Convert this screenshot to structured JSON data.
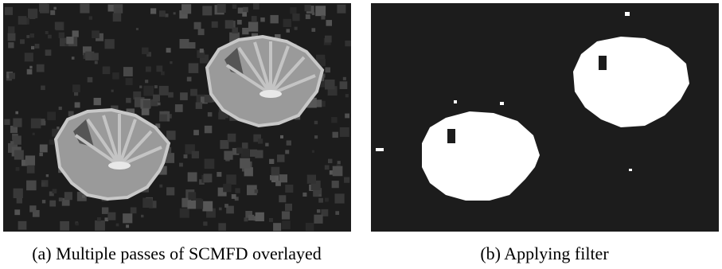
{
  "figure": {
    "panels": [
      {
        "caption": "(a) Multiple passes of SCMFD overlayed"
      },
      {
        "caption": "(b) Applying filter"
      }
    ]
  }
}
